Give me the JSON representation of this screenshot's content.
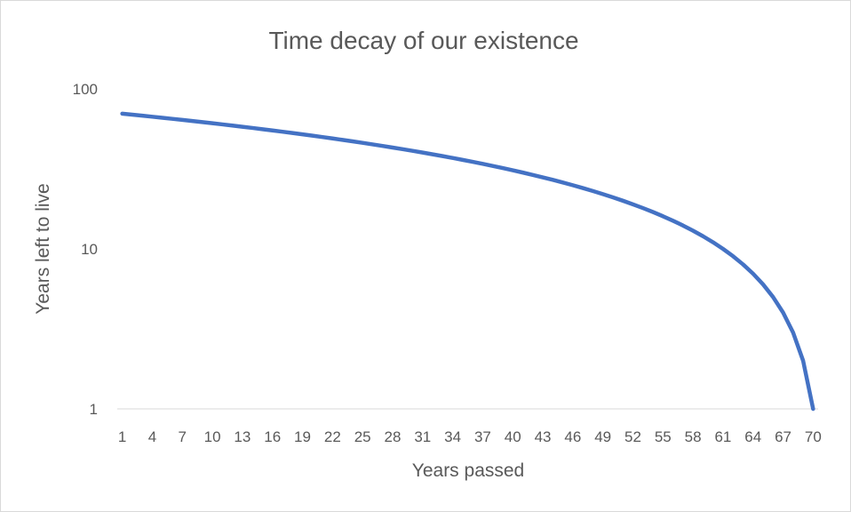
{
  "chart_data": {
    "type": "line",
    "title": "Time decay of our existence",
    "xlabel": "Years passed",
    "ylabel": "Years left to live",
    "yscale": "log",
    "ylim": [
      1,
      100
    ],
    "yticks": [
      "1",
      "10",
      "100"
    ],
    "x_tick_labels": [
      "1",
      "4",
      "7",
      "10",
      "13",
      "16",
      "19",
      "22",
      "25",
      "28",
      "31",
      "34",
      "37",
      "40",
      "43",
      "46",
      "49",
      "52",
      "55",
      "58",
      "61",
      "64",
      "67",
      "70"
    ],
    "grid": false,
    "legend": "none",
    "series": [
      {
        "color": "#4472c4",
        "x": [
          1,
          2,
          3,
          4,
          5,
          6,
          7,
          8,
          9,
          10,
          11,
          12,
          13,
          14,
          15,
          16,
          17,
          18,
          19,
          20,
          21,
          22,
          23,
          24,
          25,
          26,
          27,
          28,
          29,
          30,
          31,
          32,
          33,
          34,
          35,
          36,
          37,
          38,
          39,
          40,
          41,
          42,
          43,
          44,
          45,
          46,
          47,
          48,
          49,
          50,
          51,
          52,
          53,
          54,
          55,
          56,
          57,
          58,
          59,
          60,
          61,
          62,
          63,
          64,
          65,
          66,
          67,
          68,
          69,
          70
        ],
        "values": [
          70,
          69,
          68,
          67,
          66,
          65,
          64,
          63,
          62,
          61,
          60,
          59,
          58,
          57,
          56,
          55,
          54,
          53,
          52,
          51,
          50,
          49,
          48,
          47,
          46,
          45,
          44,
          43,
          42,
          41,
          40,
          39,
          38,
          37,
          36,
          35,
          34,
          33,
          32,
          31,
          30,
          29,
          28,
          27,
          26,
          25,
          24,
          23,
          22,
          21,
          20,
          19,
          18,
          17,
          16,
          15,
          14,
          13,
          12,
          11,
          10,
          9,
          8,
          7,
          6,
          5,
          4,
          3,
          2,
          1
        ]
      }
    ]
  }
}
